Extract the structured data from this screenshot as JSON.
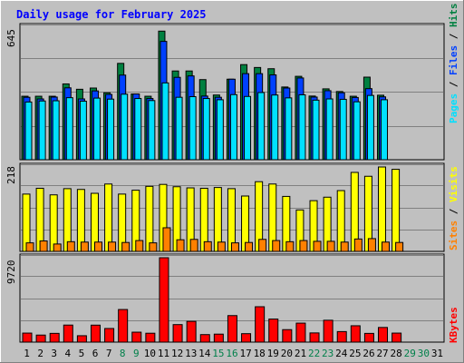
{
  "title": "Daily usage for February 2025",
  "colors": {
    "background": "#c0c0c0",
    "title": "#0000ff",
    "hits": "#008040",
    "files": "#0040ff",
    "pages": "#00e0ff",
    "visits": "#ffff00",
    "sites": "#ff8000",
    "kbytes": "#ff0000",
    "weekend_day": "#00804a",
    "weekday_day": "#000000"
  },
  "chart_data": [
    {
      "type": "bar",
      "name": "hits-files-pages",
      "max_label": "645",
      "ylim": [
        0,
        645
      ],
      "legend": [
        "Pages",
        "Files",
        "Hits"
      ],
      "series": [
        {
          "name": "Hits",
          "values": [
            309,
            309,
            309,
            369,
            343,
            349,
            326,
            469,
            320,
            309,
            626,
            432,
            432,
            390,
            315,
            392,
            463,
            449,
            443,
            354,
            406,
            310,
            345,
            332,
            309,
            402,
            314,
            0
          ]
        },
        {
          "name": "Files",
          "values": [
            304,
            296,
            305,
            350,
            296,
            335,
            318,
            412,
            320,
            298,
            576,
            401,
            408,
            310,
            304,
            392,
            419,
            419,
            413,
            349,
            398,
            305,
            336,
            326,
            303,
            346,
            306,
            0
          ]
        },
        {
          "name": "Pages",
          "values": [
            281,
            286,
            287,
            302,
            285,
            300,
            295,
            319,
            298,
            288,
            374,
            304,
            307,
            298,
            292,
            317,
            308,
            327,
            315,
            301,
            316,
            290,
            296,
            294,
            282,
            313,
            292,
            0
          ]
        }
      ]
    },
    {
      "type": "bar",
      "name": "visits-sites",
      "max_label": "218",
      "ylim": [
        0,
        218
      ],
      "legend": [
        "Sites",
        "Visits"
      ],
      "series": [
        {
          "name": "Visits",
          "values": [
            148,
            163,
            146,
            162,
            160,
            150,
            174,
            148,
            158,
            168,
            173,
            167,
            164,
            163,
            165,
            162,
            143,
            180,
            174,
            142,
            107,
            131,
            140,
            157,
            204,
            194,
            218,
            212
          ]
        },
        {
          "name": "Sites",
          "values": [
            22,
            27,
            19,
            25,
            24,
            24,
            24,
            23,
            28,
            22,
            61,
            30,
            31,
            25,
            24,
            22,
            23,
            31,
            28,
            25,
            28,
            26,
            26,
            24,
            32,
            33,
            24,
            23
          ]
        }
      ]
    },
    {
      "type": "bar",
      "name": "kbytes",
      "max_label": "9720",
      "ylim": [
        0,
        9720
      ],
      "legend": [
        "KBytes"
      ],
      "series": [
        {
          "name": "KBytes",
          "values": [
            1040,
            812,
            1008,
            1964,
            738,
            1956,
            1570,
            3756,
            1146,
            1024,
            9720,
            2018,
            2392,
            866,
            920,
            3056,
            974,
            4076,
            2656,
            1438,
            2188,
            1060,
            2520,
            1214,
            1886,
            1006,
            1688,
            1040
          ]
        }
      ]
    }
  ],
  "days": [
    {
      "label": "1",
      "weekend": false
    },
    {
      "label": "2",
      "weekend": false
    },
    {
      "label": "3",
      "weekend": false
    },
    {
      "label": "4",
      "weekend": false
    },
    {
      "label": "5",
      "weekend": false
    },
    {
      "label": "6",
      "weekend": false
    },
    {
      "label": "7",
      "weekend": false
    },
    {
      "label": "8",
      "weekend": true
    },
    {
      "label": "9",
      "weekend": true
    },
    {
      "label": "10",
      "weekend": false
    },
    {
      "label": "11",
      "weekend": false
    },
    {
      "label": "12",
      "weekend": false
    },
    {
      "label": "13",
      "weekend": false
    },
    {
      "label": "14",
      "weekend": false
    },
    {
      "label": "15",
      "weekend": true
    },
    {
      "label": "16",
      "weekend": true
    },
    {
      "label": "17",
      "weekend": false
    },
    {
      "label": "18",
      "weekend": false
    },
    {
      "label": "19",
      "weekend": false
    },
    {
      "label": "20",
      "weekend": false
    },
    {
      "label": "21",
      "weekend": false
    },
    {
      "label": "22",
      "weekend": true
    },
    {
      "label": "23",
      "weekend": true
    },
    {
      "label": "24",
      "weekend": false
    },
    {
      "label": "25",
      "weekend": false
    },
    {
      "label": "26",
      "weekend": false
    },
    {
      "label": "27",
      "weekend": false
    },
    {
      "label": "28",
      "weekend": false
    },
    {
      "label": "29",
      "weekend": true
    },
    {
      "label": "30",
      "weekend": true
    },
    {
      "label": "31",
      "weekend": false
    }
  ]
}
